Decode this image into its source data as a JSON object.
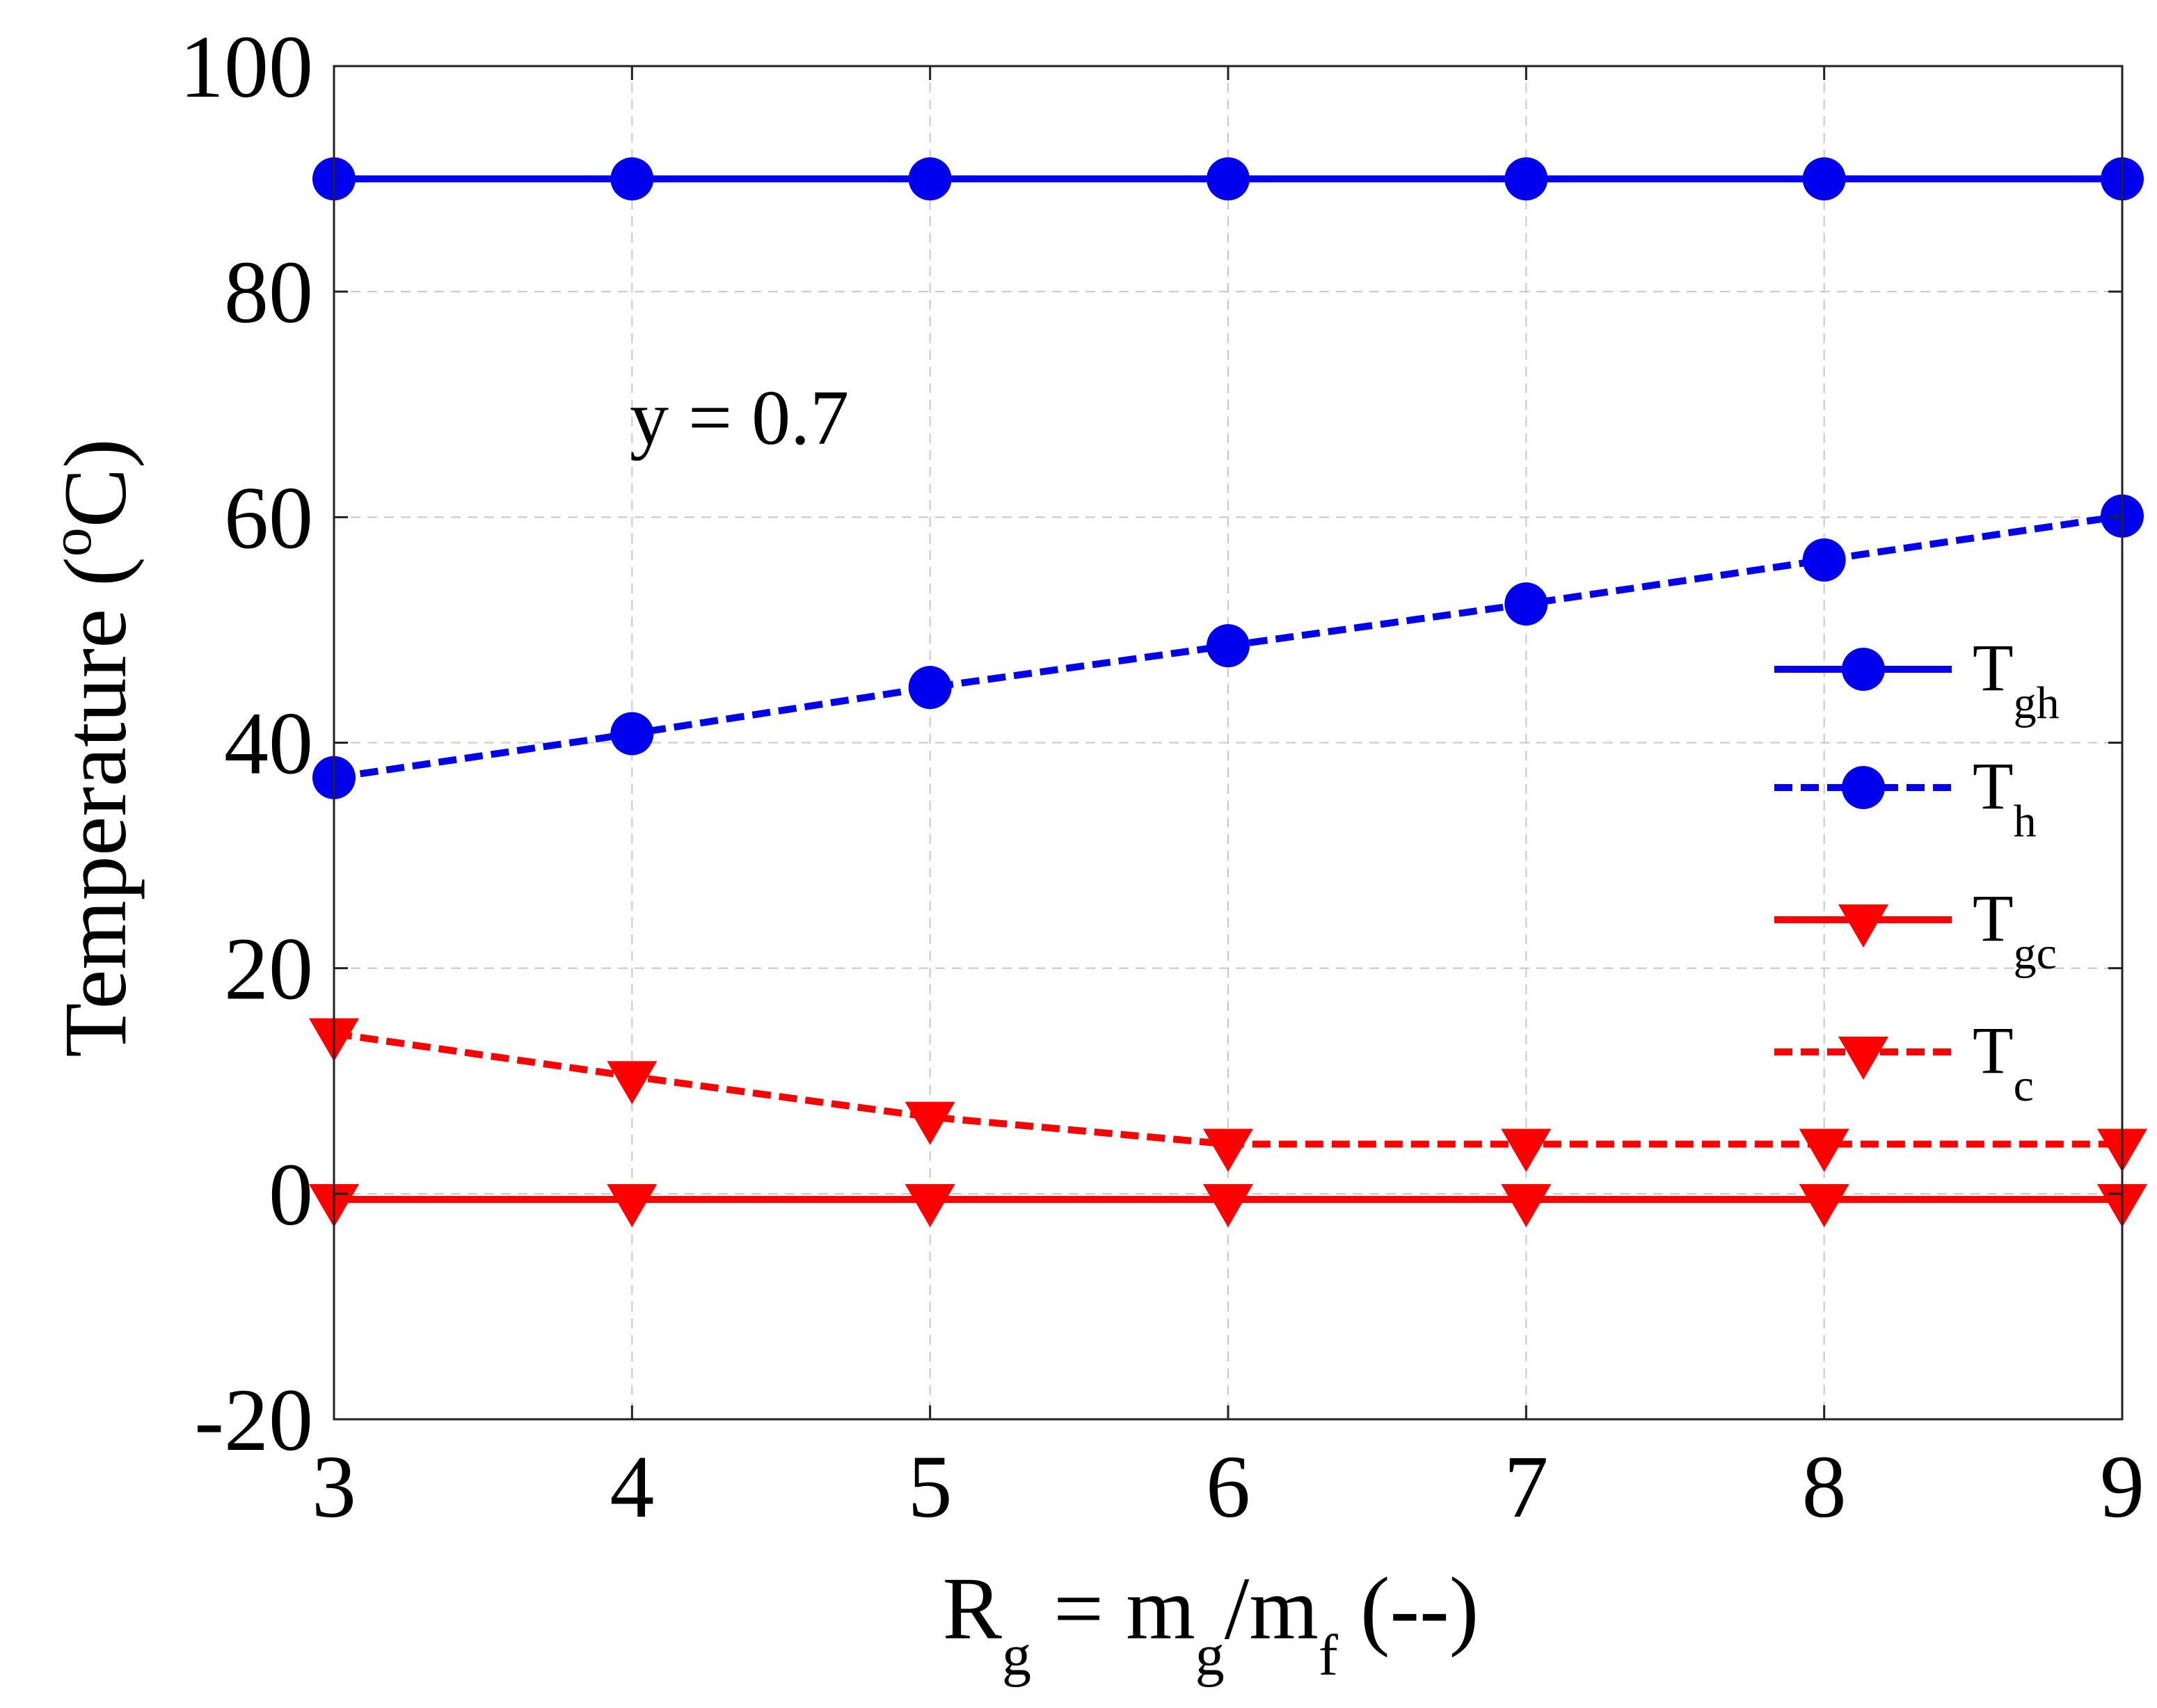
{
  "chart_data": {
    "type": "line",
    "x": [
      3,
      4,
      5,
      6,
      7,
      8,
      9
    ],
    "xlim": [
      3,
      9
    ],
    "ylim": [
      -20,
      100
    ],
    "x_ticks": [
      "3",
      "4",
      "5",
      "6",
      "7",
      "8",
      "9"
    ],
    "y_ticks": [
      "-20",
      "0",
      "20",
      "40",
      "60",
      "80",
      "100"
    ],
    "grid": true,
    "xlabel": {
      "main": "R",
      "sub1": "g",
      "mid": " = m",
      "sub2": "g",
      "mid2": "/m",
      "sub3": "f",
      "tail": " (--)"
    },
    "ylabel": {
      "main": "Temperature (",
      "sup": "o",
      "tail": "C)"
    },
    "annotation": "y = 0.7",
    "legend_position": "right",
    "series": [
      {
        "name": "T",
        "sub": "gh",
        "values": [
          90,
          90,
          90,
          90,
          90,
          90,
          90
        ],
        "color": "#0000ee",
        "dash": "solid",
        "marker": "circle"
      },
      {
        "name": "T",
        "sub": "h",
        "values": [
          36.9,
          40.8,
          44.9,
          48.6,
          52.3,
          56.2,
          60.1
        ],
        "color": "#0000ee",
        "dash": "dashed",
        "marker": "circle"
      },
      {
        "name": "T",
        "sub": "gc",
        "values": [
          -0.5,
          -0.5,
          -0.5,
          -0.5,
          -0.5,
          -0.5,
          -0.5
        ],
        "color": "#ff0000",
        "dash": "solid",
        "marker": "triangle-down"
      },
      {
        "name": "T",
        "sub": "c",
        "values": [
          14.2,
          10.4,
          6.8,
          4.4,
          4.4,
          4.4,
          4.4
        ],
        "color": "#ff0000",
        "dash": "dashed",
        "marker": "triangle-down"
      }
    ]
  }
}
